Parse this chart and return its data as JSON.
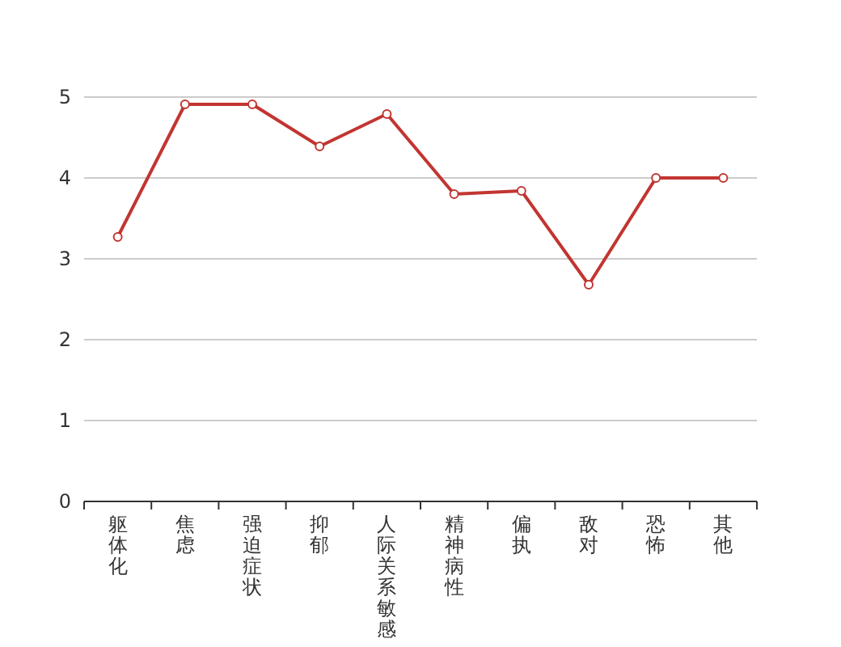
{
  "chart_data": {
    "type": "line",
    "categories": [
      "躯体化",
      "焦虑",
      "强迫症状",
      "抑郁",
      "人际关系敏感",
      "精神病性",
      "偏执",
      "敌对",
      "恐怖",
      "其他"
    ],
    "values": [
      3.27,
      4.91,
      4.91,
      4.39,
      4.79,
      3.8,
      3.84,
      2.68,
      4.0,
      4.0
    ],
    "color": "#c23531",
    "ylim": [
      0,
      5
    ],
    "yticks": [
      0,
      1,
      2,
      3,
      4,
      5
    ],
    "grid": "y",
    "marker": "circle",
    "line_style": "solid"
  }
}
